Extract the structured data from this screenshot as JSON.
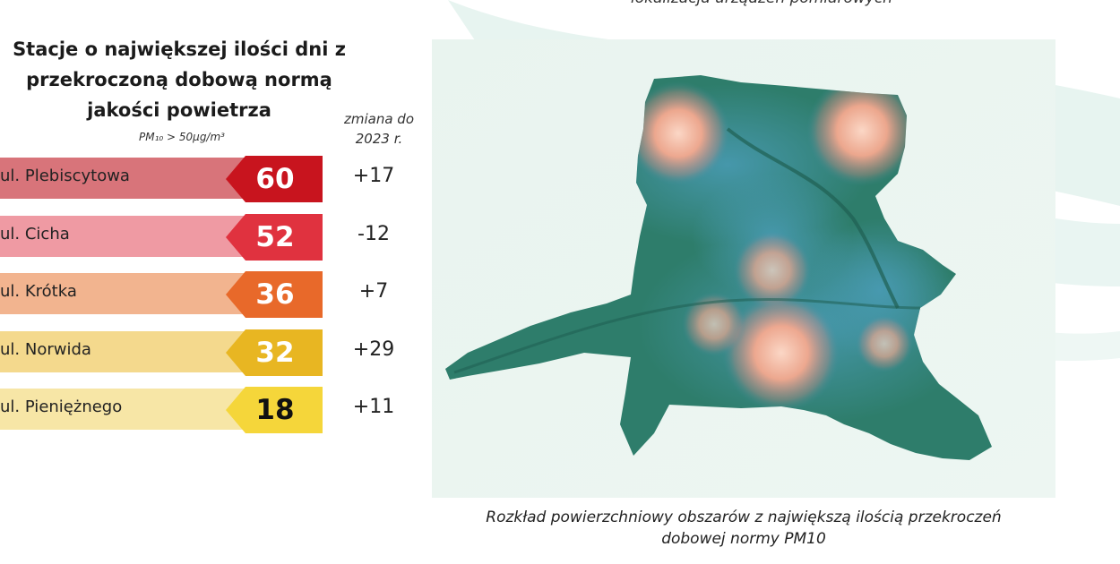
{
  "top_caption": "lokalizacja urządzeń pomiarowych",
  "title_lines": [
    "Stacje o największej ilości dni z",
    "przekroczoną dobową normą",
    "jakości powietrza"
  ],
  "subtitle": "PM₁₀ > 50µg/m³",
  "change_header_lines": [
    "zmiana do",
    "2023 r."
  ],
  "map_caption_lines": [
    "Rozkład powierzchniowy obszarów z największą ilością przekroczeń",
    "dobowej normy PM10"
  ],
  "colors": {
    "map_base": "#2e7d6b",
    "map_blue": "#3f8fa8",
    "hotspot": "#f6a98f",
    "background_wash": "#eaf4f0"
  },
  "chart_data": {
    "type": "bar",
    "orientation": "horizontal",
    "title": "Stacje o największej ilości dni z przekroczoną dobową normą jakości powietrza",
    "subtitle": "PM₁₀ > 50µg/m³",
    "categories": [
      "ul. Plebiscytowa",
      "ul. Cicha",
      "ul. Krótka",
      "ul. Norwida",
      "ul. Pieniężnego"
    ],
    "values": [
      60,
      52,
      36,
      32,
      18
    ],
    "change_label": "zmiana do 2023 r.",
    "changes": [
      "+17",
      "-12",
      "+7",
      "+29",
      "+11"
    ],
    "bar_colors": [
      "#d8747a",
      "#ef9aa3",
      "#f2b48f",
      "#f4d98d",
      "#f7e6a6"
    ],
    "tag_colors": [
      "#c8141e",
      "#e0323f",
      "#e8692a",
      "#e8b622",
      "#f5d63a"
    ],
    "value_text_colors": [
      "#ffffff",
      "#ffffff",
      "#ffffff",
      "#ffffff",
      "#111111"
    ],
    "hotspots": [
      {
        "name": "north-west",
        "intensity": 0.9
      },
      {
        "name": "north-east",
        "intensity": 0.95
      },
      {
        "name": "central",
        "intensity": 0.55
      },
      {
        "name": "south-central",
        "intensity": 0.9
      },
      {
        "name": "south-west",
        "intensity": 0.55
      },
      {
        "name": "east",
        "intensity": 0.5
      }
    ]
  }
}
